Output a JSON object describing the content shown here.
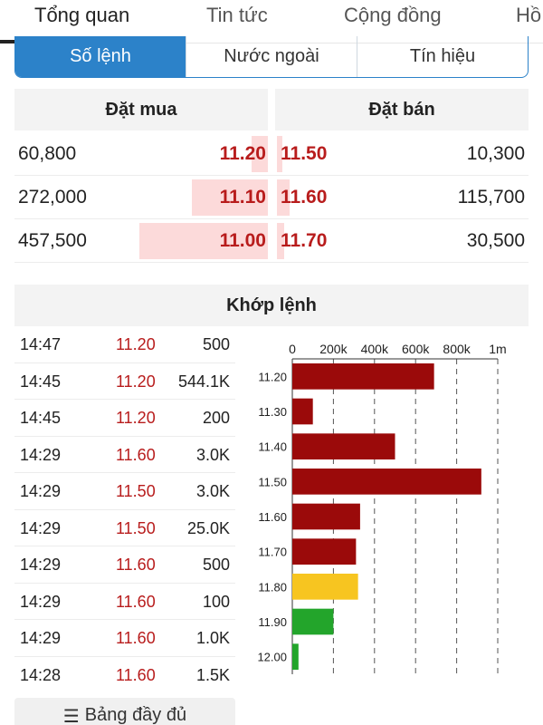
{
  "top_tabs": [
    "Tổng quan",
    "Tin tức",
    "Cộng đồng",
    "Hồ"
  ],
  "segments": [
    "Số lệnh",
    "Nước ngoài",
    "Tín hiệu"
  ],
  "order_book": {
    "buy_header": "Đặt mua",
    "sell_header": "Đặt bán",
    "rows": [
      {
        "buy_vol": "60,800",
        "buy_price": "11.20",
        "sell_price": "11.50",
        "sell_vol": "10,300"
      },
      {
        "buy_vol": "272,000",
        "buy_price": "11.10",
        "sell_price": "11.60",
        "sell_vol": "115,700"
      },
      {
        "buy_vol": "457,500",
        "buy_price": "11.00",
        "sell_price": "11.70",
        "sell_vol": "30,500"
      }
    ]
  },
  "matched": {
    "header": "Khớp lệnh",
    "trades": [
      {
        "time": "14:47",
        "price": "11.20",
        "vol": "500"
      },
      {
        "time": "14:45",
        "price": "11.20",
        "vol": "544.1K"
      },
      {
        "time": "14:45",
        "price": "11.20",
        "vol": "200"
      },
      {
        "time": "14:29",
        "price": "11.60",
        "vol": "3.0K"
      },
      {
        "time": "14:29",
        "price": "11.50",
        "vol": "3.0K"
      },
      {
        "time": "14:29",
        "price": "11.50",
        "vol": "25.0K"
      },
      {
        "time": "14:29",
        "price": "11.60",
        "vol": "500"
      },
      {
        "time": "14:29",
        "price": "11.60",
        "vol": "100"
      },
      {
        "time": "14:29",
        "price": "11.60",
        "vol": "1.0K"
      },
      {
        "time": "14:28",
        "price": "11.60",
        "vol": "1.5K"
      }
    ],
    "full_button": "Bảng đầy đủ",
    "full_button_icon": "list-icon"
  },
  "chart_data": {
    "type": "bar",
    "orientation": "horizontal",
    "categories": [
      "11.20",
      "11.30",
      "11.40",
      "11.50",
      "11.60",
      "11.70",
      "11.80",
      "11.90",
      "12.00"
    ],
    "values": [
      690000,
      100000,
      500000,
      920000,
      330000,
      310000,
      320000,
      200000,
      30000
    ],
    "colors": [
      "#9b0a0a",
      "#9b0a0a",
      "#9b0a0a",
      "#9b0a0a",
      "#9b0a0a",
      "#9b0a0a",
      "#f7c520",
      "#23a52b",
      "#23a52b"
    ],
    "xticks": [
      "0",
      "200k",
      "400k",
      "600k",
      "800k",
      "1m"
    ],
    "xlim": [
      0,
      1000000
    ],
    "axis_position": "top",
    "grid": "dashed-vertical"
  }
}
